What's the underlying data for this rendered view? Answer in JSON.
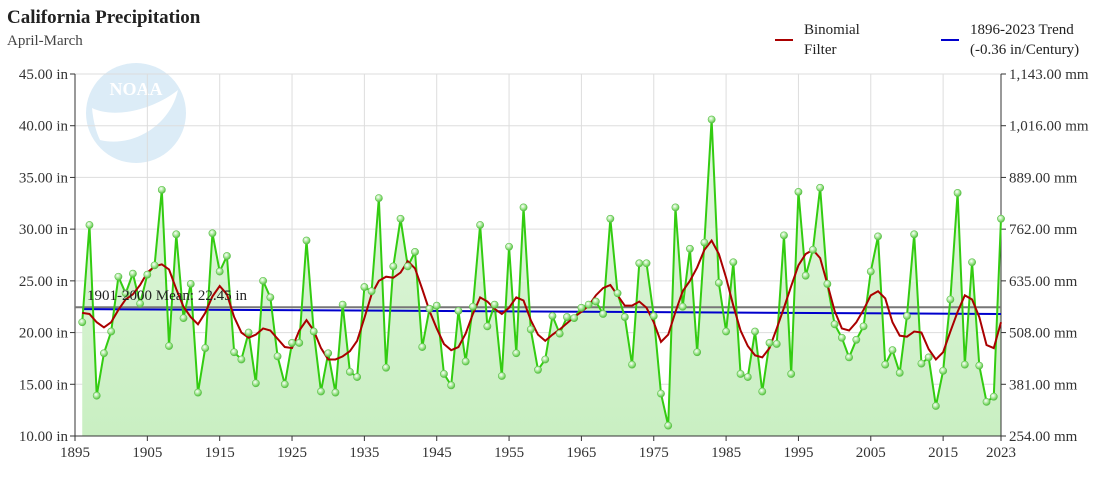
{
  "header": {
    "title": "California Precipitation",
    "subtitle": "April-March"
  },
  "legend": [
    {
      "name": "filter",
      "line1": "Binomial",
      "line2": "Filter",
      "color": "#aa0000"
    },
    {
      "name": "trend",
      "line1": "1896-2023 Trend",
      "line2": "(-0.36 in/Century)",
      "color": "#0000cc"
    }
  ],
  "colors": {
    "precip": "#33cc11",
    "fill": "#c9efc2",
    "mean": "#777777",
    "grid": "#dddddd",
    "logo": "#d6e9f6"
  },
  "chart_data": {
    "type": "area",
    "x_start": 1896,
    "years": [
      1896,
      1897,
      1898,
      1899,
      1900,
      1901,
      1902,
      1903,
      1904,
      1905,
      1906,
      1907,
      1908,
      1909,
      1910,
      1911,
      1912,
      1913,
      1914,
      1915,
      1916,
      1917,
      1918,
      1919,
      1920,
      1921,
      1922,
      1923,
      1924,
      1925,
      1926,
      1927,
      1928,
      1929,
      1930,
      1931,
      1932,
      1933,
      1934,
      1935,
      1936,
      1937,
      1938,
      1939,
      1940,
      1941,
      1942,
      1943,
      1944,
      1945,
      1946,
      1947,
      1948,
      1949,
      1950,
      1951,
      1952,
      1953,
      1954,
      1955,
      1956,
      1957,
      1958,
      1959,
      1960,
      1961,
      1962,
      1963,
      1964,
      1965,
      1966,
      1967,
      1968,
      1969,
      1970,
      1971,
      1972,
      1973,
      1974,
      1975,
      1976,
      1977,
      1978,
      1979,
      1980,
      1981,
      1982,
      1983,
      1984,
      1985,
      1986,
      1987,
      1988,
      1989,
      1990,
      1991,
      1992,
      1993,
      1994,
      1995,
      1996,
      1997,
      1998,
      1999,
      2000,
      2001,
      2002,
      2003,
      2004,
      2005,
      2006,
      2007,
      2008,
      2009,
      2010,
      2011,
      2012,
      2013,
      2014,
      2015,
      2016,
      2017,
      2018,
      2019,
      2020,
      2021,
      2022,
      2023
    ],
    "series": [
      {
        "name": "precipitation",
        "values": [
          21.0,
          30.4,
          13.9,
          18.0,
          20.1,
          25.4,
          23.8,
          25.7,
          22.8,
          25.6,
          26.5,
          33.8,
          18.7,
          29.5,
          21.4,
          24.7,
          14.2,
          18.5,
          29.6,
          25.9,
          27.4,
          18.1,
          17.4,
          20.0,
          15.1,
          25.0,
          23.4,
          17.7,
          15.0,
          19.0,
          19.0,
          28.9,
          20.1,
          14.3,
          18.0,
          14.2,
          22.7,
          16.2,
          15.7,
          24.4,
          24.0,
          33.0,
          16.6,
          26.4,
          31.0,
          26.4,
          27.8,
          18.6,
          22.3,
          22.6,
          16.0,
          14.9,
          22.1,
          17.2,
          22.5,
          30.4,
          20.6,
          22.7,
          15.8,
          28.3,
          18.0,
          32.1,
          20.3,
          16.4,
          17.4,
          21.6,
          19.9,
          21.5,
          21.4,
          22.4,
          22.7,
          23.0,
          21.8,
          31.0,
          23.8,
          21.5,
          16.9,
          26.7,
          26.7,
          21.6,
          14.1,
          11.0,
          32.1,
          22.5,
          28.1,
          18.1,
          28.7,
          40.6,
          24.8,
          20.1,
          26.8,
          16.0,
          15.7,
          20.1,
          14.3,
          19.0,
          18.9,
          29.4,
          16.0,
          33.6,
          25.5,
          28.0,
          34.0,
          24.7,
          20.8,
          19.5,
          17.6,
          19.3,
          20.6,
          25.9,
          29.3,
          16.9,
          18.3,
          16.1,
          21.6,
          29.5,
          17.0,
          17.6,
          12.9,
          16.3,
          23.2,
          33.5,
          16.9,
          26.8,
          16.8,
          13.3,
          13.8,
          31.0
        ]
      },
      {
        "name": "binomial-filter",
        "values": [
          21.9,
          21.8,
          21.0,
          20.5,
          21.0,
          22.2,
          23.2,
          23.7,
          24.6,
          25.8,
          26.4,
          26.6,
          26.1,
          24.2,
          22.5,
          21.5,
          20.8,
          21.9,
          23.5,
          24.5,
          23.7,
          21.5,
          20.0,
          19.5,
          19.8,
          20.4,
          20.2,
          19.4,
          18.6,
          18.5,
          20.2,
          21.2,
          20.2,
          18.5,
          17.4,
          17.4,
          17.7,
          18.2,
          19.2,
          21.4,
          23.7,
          25.0,
          25.4,
          25.3,
          25.8,
          26.9,
          26.2,
          24.2,
          22.1,
          20.4,
          18.9,
          18.3,
          18.6,
          19.9,
          21.8,
          23.4,
          23.0,
          22.3,
          21.8,
          22.4,
          23.4,
          23.1,
          21.2,
          19.8,
          19.2,
          19.8,
          20.3,
          20.9,
          21.5,
          22.0,
          22.6,
          23.6,
          24.3,
          24.6,
          23.6,
          22.6,
          22.6,
          23.0,
          22.4,
          21.0,
          19.1,
          19.8,
          22.0,
          24.0,
          25.0,
          26.3,
          28.0,
          28.9,
          27.6,
          25.3,
          22.6,
          20.2,
          18.7,
          17.8,
          17.6,
          18.5,
          20.4,
          22.4,
          24.5,
          26.5,
          27.6,
          28.0,
          27.2,
          24.7,
          22.1,
          20.4,
          20.2,
          21.0,
          22.2,
          23.6,
          24.0,
          23.3,
          21.0,
          19.7,
          19.6,
          20.1,
          20.0,
          18.4,
          17.4,
          18.1,
          20.1,
          22.0,
          23.6,
          23.2,
          21.5,
          18.8,
          18.5,
          21.0
        ]
      }
    ],
    "trend": {
      "start": 22.27,
      "end": 21.8
    },
    "mean": {
      "label": "1901-2000 Mean: 22.45 in",
      "value": 22.45
    },
    "xlim": [
      1895,
      2023
    ],
    "ylim": [
      10,
      45
    ],
    "x_ticks": [
      "1895",
      "1905",
      "1915",
      "1925",
      "1935",
      "1945",
      "1955",
      "1965",
      "1975",
      "1985",
      "1995",
      "2005",
      "2015",
      "2023"
    ],
    "y_ticks_left": [
      "45.00 in",
      "40.00 in",
      "35.00 in",
      "30.00 in",
      "25.00 in",
      "20.00 in",
      "15.00 in",
      "10.00 in"
    ],
    "y_ticks_right": [
      "1,143.00 mm",
      "1,016.00 mm",
      "889.00 mm",
      "762.00 mm",
      "635.00 mm",
      "508.00 mm",
      "381.00 mm",
      "254.00 mm"
    ],
    "grid": true,
    "legend_position": "top-right"
  }
}
